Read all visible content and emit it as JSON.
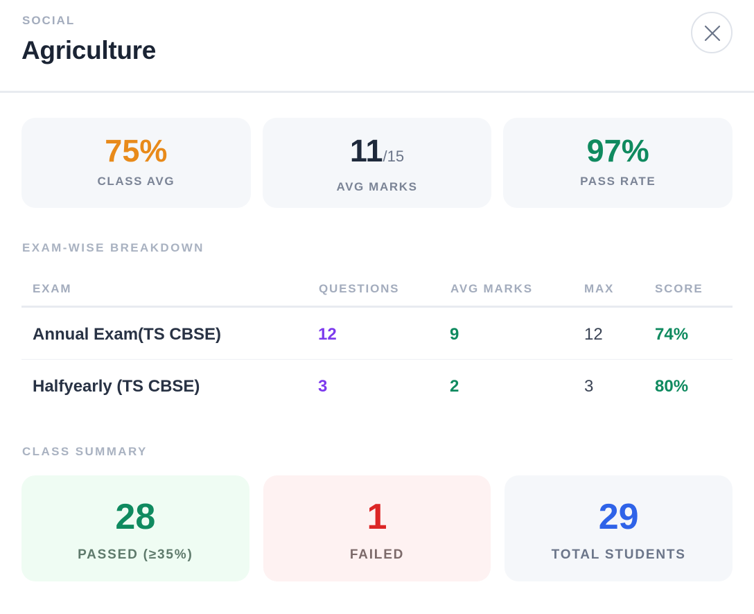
{
  "header": {
    "subject": "SOCIAL",
    "chapter": "Agriculture",
    "close_icon": "close-icon"
  },
  "stats": {
    "class_avg": {
      "value": "75%",
      "label": "CLASS AVG",
      "color": "#e88a1a"
    },
    "avg_marks": {
      "value": "11",
      "out_of": "/15",
      "label": "AVG MARKS",
      "color": "#1e293b"
    },
    "pass_rate": {
      "value": "97%",
      "label": "PASS RATE",
      "color": "#0f8a5f"
    }
  },
  "breakdown": {
    "section_label": "EXAM-WISE BREAKDOWN",
    "columns": {
      "exam": "EXAM",
      "questions": "QUESTIONS",
      "avg_marks": "AVG MARKS",
      "max": "MAX",
      "score": "SCORE"
    },
    "rows": [
      {
        "exam": "Annual Exam(TS CBSE)",
        "questions": "12",
        "avg_marks": "9",
        "max": "12",
        "score": "74%"
      },
      {
        "exam": "Halfyearly (TS CBSE)",
        "questions": "3",
        "avg_marks": "2",
        "max": "3",
        "score": "80%"
      }
    ]
  },
  "summary": {
    "section_label": "CLASS SUMMARY",
    "passed": {
      "value": "28",
      "label": "PASSED (≥35%)",
      "color": "#0f8a5f",
      "bg": "#effcf3"
    },
    "failed": {
      "value": "1",
      "label": "FAILED",
      "color": "#dc2626",
      "bg": "#fef2f2"
    },
    "total": {
      "value": "29",
      "label": "TOTAL STUDENTS",
      "color": "#2f63e8",
      "bg": "#f5f7fa"
    }
  }
}
